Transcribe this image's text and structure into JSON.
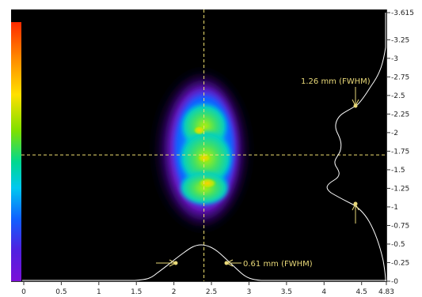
{
  "beam_image": {
    "color_scale": [
      "#ff2a00",
      "#ff8a00",
      "#ffe000",
      "#7ee000",
      "#00d890",
      "#00c8f0",
      "#1060ff",
      "#5020e0",
      "#7a10d8"
    ]
  },
  "x_axis": {
    "ticks": [
      "0",
      "0.5",
      "1",
      "1.5",
      "2",
      "2.5",
      "3",
      "3.5",
      "4",
      "4.5",
      "4.83"
    ],
    "values": [
      0,
      0.5,
      1,
      1.5,
      2,
      2.5,
      3,
      3.5,
      4,
      4.5,
      4.83
    ],
    "max": 4.83
  },
  "y_axis": {
    "ticks": [
      "3.615",
      "3.25",
      "3",
      "2.75",
      "2.5",
      "2.25",
      "2",
      "1.75",
      "1.5",
      "1.25",
      "1",
      "0.75",
      "0.5",
      "0.25",
      "0"
    ],
    "values": [
      3.615,
      3.25,
      3,
      2.75,
      2.5,
      2.25,
      2,
      1.75,
      1.5,
      1.25,
      1,
      0.75,
      0.5,
      0.25,
      0
    ],
    "max": 3.615
  },
  "crosshair": {
    "x": 2.4,
    "y": 1.7
  },
  "horizontal_profile": {
    "fwhm_label": "0.61 mm (FWHM)"
  },
  "vertical_profile": {
    "fwhm_label": "1.26 mm (FWHM)"
  },
  "colors": {
    "crosshair": "#f0e070",
    "annotation": "#e8d878",
    "profile": "#ffffff"
  }
}
